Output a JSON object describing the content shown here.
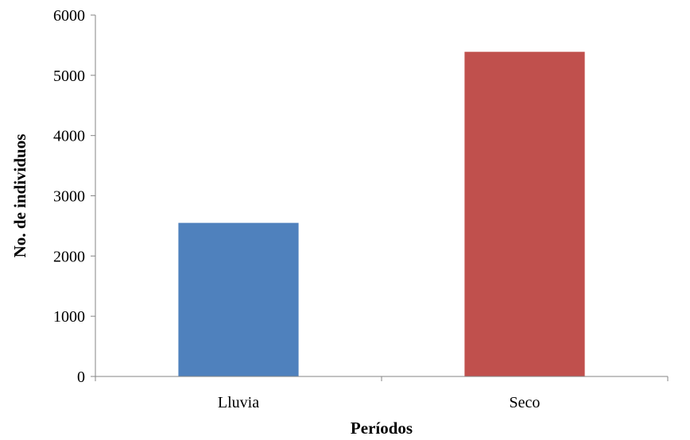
{
  "chart_data": {
    "type": "bar",
    "categories": [
      "Lluvia",
      "Seco"
    ],
    "values": [
      2550,
      5390
    ],
    "colors": [
      "#4F81BD",
      "#C0504D"
    ],
    "xlabel": "Períodos",
    "ylabel": "No. de individuos",
    "ylim": [
      0,
      6000
    ],
    "yticks": [
      0,
      1000,
      2000,
      3000,
      4000,
      5000,
      6000
    ],
    "grid": false,
    "legend": "none"
  }
}
